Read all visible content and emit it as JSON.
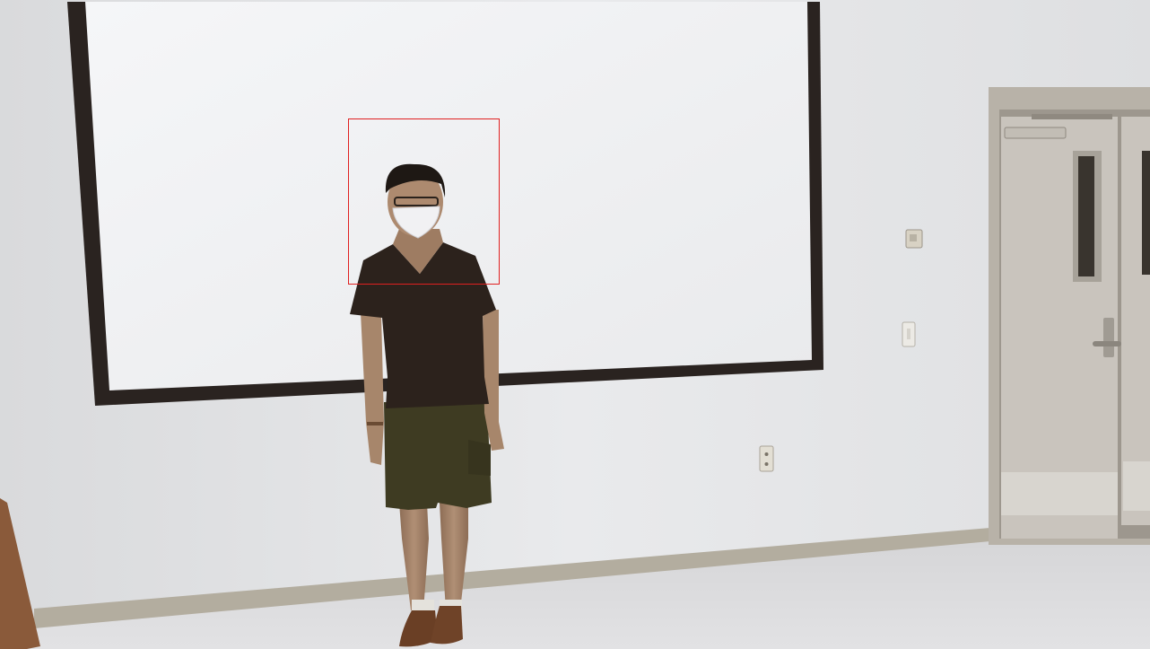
{
  "scene": {
    "description_free": true,
    "detection": {
      "label": "",
      "box_color": "#e02020"
    },
    "palette": {
      "wall": "#e6e7e9",
      "floor": "#d9d9dc",
      "screen": "#f2f3f5",
      "screen_frame": "#2a2320",
      "door": "#c8c3bc",
      "baseboard": "#a9a396",
      "shirt": "#2c221c",
      "shorts": "#3e3b22",
      "skin": "#a7866b",
      "mask": "#f1f1f3",
      "shoes": "#6a3f25"
    }
  }
}
